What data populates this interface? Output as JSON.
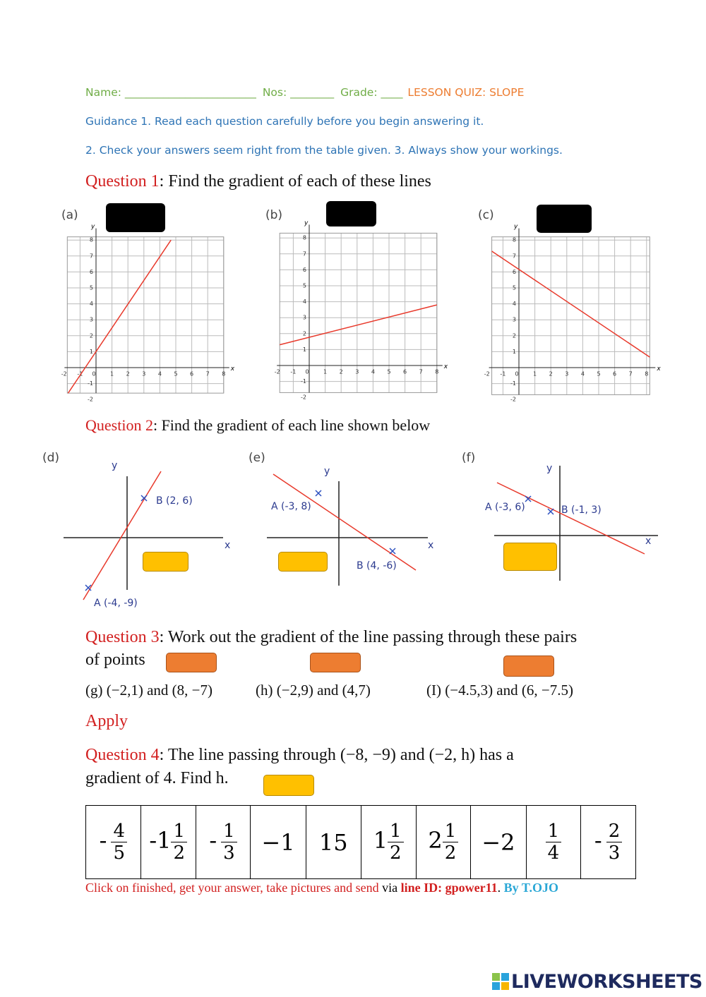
{
  "header": {
    "name_label": "Name: ________________________",
    "nos_label": "Nos: ________",
    "grade_label": "Grade: ____",
    "title": "LESSON QUIZ: SLOPE"
  },
  "guidance": [
    "Guidance 1. Read each question carefully before you begin answering it.",
    "2. Check your answers seem right from the table given. 3. Always show your workings."
  ],
  "question1": {
    "label": "Question 1",
    "text": ": Find the gradient of each of these lines",
    "graphs": [
      {
        "tag": "(a)",
        "x_ticks": [
          -2,
          -1,
          0,
          1,
          2,
          3,
          4,
          5,
          6,
          7,
          8
        ],
        "y_ticks": [
          -2,
          -1,
          1,
          2,
          3,
          4,
          5,
          6,
          7,
          8
        ],
        "x_axis": "x",
        "y_axis": "y"
      },
      {
        "tag": "(b)",
        "x_ticks": [
          -2,
          -1,
          0,
          1,
          2,
          3,
          4,
          5,
          6,
          7,
          8
        ],
        "y_ticks": [
          -2,
          -1,
          1,
          2,
          3,
          4,
          5,
          6,
          7,
          8
        ],
        "x_axis": "x",
        "y_axis": "y"
      },
      {
        "tag": "(c)",
        "x_ticks": [
          -2,
          -1,
          0,
          1,
          2,
          3,
          4,
          5,
          6,
          7,
          8
        ],
        "y_ticks": [
          -2,
          -1,
          1,
          2,
          3,
          4,
          5,
          6,
          7,
          8
        ],
        "x_axis": "x",
        "y_axis": "y"
      }
    ]
  },
  "question2": {
    "label": "Question 2",
    "text": ": Find the gradient of each line shown below",
    "diagrams": [
      {
        "tag": "(d)",
        "points": [
          "B (2, 6)",
          "A (-4, -9)"
        ],
        "x_axis": "x",
        "y_axis": "y"
      },
      {
        "tag": "(e)",
        "points": [
          "A (-3, 8)",
          "B (4, -6)"
        ],
        "x_axis": "x",
        "y_axis": "y"
      },
      {
        "tag": "(f)",
        "points": [
          "A (-3, 6)",
          "B (-1, 3)"
        ],
        "x_axis": "x",
        "y_axis": "y"
      }
    ]
  },
  "question3": {
    "label": "Question 3",
    "text": ": Work out the gradient of the line passing through these pairs",
    "text2": "of points",
    "parts": [
      "(g) (−2,1) and (8, −7)",
      "(h) (−2,9) and (4,7)",
      "(I) (−4.5,3) and (6, −7.5)"
    ]
  },
  "apply": "Apply",
  "question4": {
    "label": "Question 4",
    "text": ": The line passing through (−8, −9) and (−2, h) has a",
    "text2": "gradient of 4. Find h."
  },
  "answer_table": [
    {
      "sign": "-",
      "numerator": "4",
      "denominator": "5"
    },
    {
      "whole": "-1",
      "numerator": "1",
      "denominator": "2"
    },
    {
      "sign": "-",
      "numerator": "1",
      "denominator": "3"
    },
    {
      "whole": "−1"
    },
    {
      "whole": "15"
    },
    {
      "whole": "1",
      "numerator": "1",
      "denominator": "2"
    },
    {
      "whole": "2",
      "numerator": "1",
      "denominator": "2"
    },
    {
      "whole": "−2"
    },
    {
      "numerator": "1",
      "denominator": "4"
    },
    {
      "sign": "-",
      "numerator": "2",
      "denominator": "3"
    }
  ],
  "footer": {
    "text": "Click on finished, get your answer, take pictures and send",
    "via": "via",
    "line_id": "line ID: gpower11",
    "author": "By T.OJO"
  },
  "brand": "LIVEWORKSHEETS"
}
